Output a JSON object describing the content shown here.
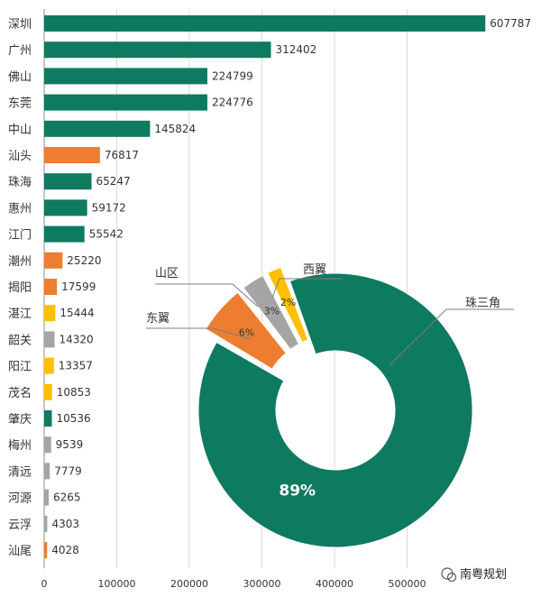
{
  "chart_data": [
    {
      "type": "bar",
      "orientation": "horizontal",
      "categories": [
        "深圳",
        "广州",
        "佛山",
        "东莞",
        "中山",
        "汕头",
        "珠海",
        "惠州",
        "江门",
        "潮州",
        "揭阳",
        "湛江",
        "韶关",
        "阳江",
        "茂名",
        "肇庆",
        "梅州",
        "清远",
        "河源",
        "云浮",
        "汕尾"
      ],
      "values": [
        607787,
        312402,
        224799,
        224776,
        145824,
        76817,
        65247,
        59172,
        55542,
        25220,
        17599,
        15444,
        14320,
        13357,
        10853,
        10536,
        9539,
        7779,
        6265,
        4303,
        4028
      ],
      "region": [
        "珠三角",
        "珠三角",
        "珠三角",
        "珠三角",
        "珠三角",
        "东翼",
        "珠三角",
        "珠三角",
        "珠三角",
        "东翼",
        "东翼",
        "西翼",
        "山区",
        "西翼",
        "西翼",
        "珠三角",
        "山区",
        "山区",
        "山区",
        "山区",
        "东翼"
      ],
      "colors": {
        "珠三角": "#0e7a5f",
        "东翼": "#ed7d31",
        "西翼": "#ffc000",
        "山区": "#a5a5a5"
      },
      "xticks": [
        0,
        100000,
        200000,
        300000,
        400000,
        500000
      ],
      "xlim": [
        0,
        620000
      ],
      "grid": true
    },
    {
      "type": "pie",
      "style": "donut",
      "slices": [
        {
          "label": "珠三角",
          "value": 89,
          "text": "89%",
          "color": "#0e7a5f"
        },
        {
          "label": "东翼",
          "value": 6,
          "text": "6%",
          "color": "#ed7d31"
        },
        {
          "label": "山区",
          "value": 3,
          "text": "3%",
          "color": "#a5a5a5"
        },
        {
          "label": "西翼",
          "value": 2,
          "text": "2%",
          "color": "#ffc000"
        }
      ]
    }
  ],
  "watermark": "南粤规划"
}
